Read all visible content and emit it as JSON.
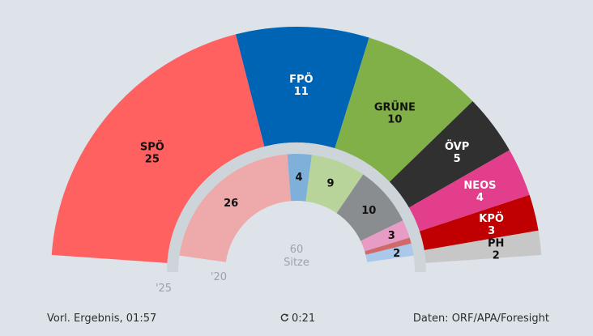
{
  "chart_data": {
    "type": "pie",
    "shape": "semicircle-parliament",
    "total_seats": 60,
    "center_label": {
      "number": "60",
      "text": "Sitze"
    },
    "outer_ring": {
      "year_label": "'25",
      "parties": [
        {
          "name": "SPÖ",
          "seats": 25,
          "color": "#ff6060",
          "text_color": "#111111"
        },
        {
          "name": "FPÖ",
          "seats": 11,
          "color": "#0064b4",
          "text_color": "#ffffff"
        },
        {
          "name": "GRÜNE",
          "seats": 10,
          "color": "#80b047",
          "text_color": "#111111"
        },
        {
          "name": "ÖVP",
          "seats": 5,
          "color": "#303030",
          "text_color": "#ffffff"
        },
        {
          "name": "NEOS",
          "seats": 4,
          "color": "#e33e8c",
          "text_color": "#ffffff"
        },
        {
          "name": "KPÖ",
          "seats": 3,
          "color": "#c00000",
          "text_color": "#ffffff"
        },
        {
          "name": "PH",
          "seats": 2,
          "color": "#c7c7c7",
          "text_color": "#111111"
        }
      ]
    },
    "inner_ring": {
      "year_label": "'20",
      "parties": [
        {
          "name": "SPÖ",
          "seats": 26,
          "color": "#eeaaaa",
          "text_color": "#111111"
        },
        {
          "name": "FPÖ",
          "seats": 4,
          "color": "#7eb0da",
          "text_color": "#111111"
        },
        {
          "name": "GRÜNE",
          "seats": 9,
          "color": "#b8d49a",
          "text_color": "#111111"
        },
        {
          "name": "ÖVP",
          "seats": 10,
          "color": "#8a8d90",
          "text_color": "#111111"
        },
        {
          "name": "NEOS",
          "seats": 3,
          "color": "#e89bc4",
          "text_color": "#111111"
        },
        {
          "name": "KPÖ",
          "seats": 1,
          "color": "#cf6a6a",
          "text_color": "#111111"
        },
        {
          "name": "PH",
          "seats": 2,
          "color": "#aac8ea",
          "text_color": "#111111"
        }
      ]
    }
  },
  "footer": {
    "status": "Vorl. Ergebnis, 01:57",
    "refresh_icon": "refresh-icon",
    "timer": "0:21",
    "source": "Daten: ORF/APA/Foresight"
  }
}
